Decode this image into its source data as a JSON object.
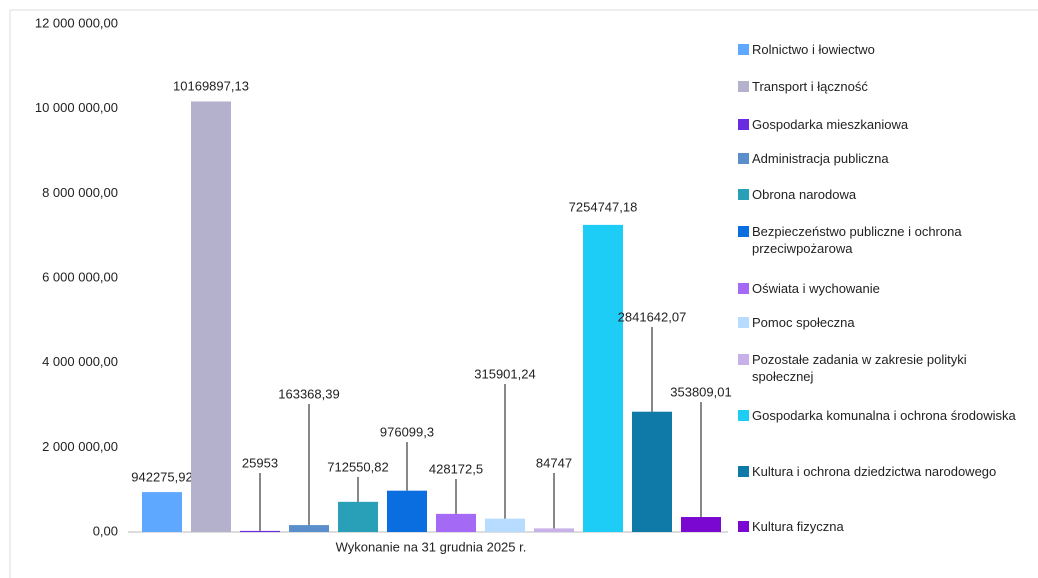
{
  "chart_data": {
    "type": "bar",
    "categories": [
      "Wykonanie na 31 grudnia 2025 r."
    ],
    "series": [
      {
        "name": "Rolnictwo i łowiectwo",
        "color": "#5fa8ff",
        "values": [
          942275.92
        ],
        "value_labels": [
          "942275,92"
        ]
      },
      {
        "name": "Transport i łączność",
        "color": "#b3b1cc",
        "values": [
          10169897.13
        ],
        "value_labels": [
          "10169897,13"
        ]
      },
      {
        "name": "Gospodarka mieszkaniowa",
        "color": "#6a2be0",
        "values": [
          25953
        ],
        "value_labels": [
          "25953"
        ]
      },
      {
        "name": "Administracja publiczna",
        "color": "#5b8fcc",
        "values": [
          163368.39
        ],
        "value_labels": [
          "163368,39"
        ]
      },
      {
        "name": "Obrona narodowa",
        "color": "#2a9fb8",
        "values": [
          712550.82
        ],
        "value_labels": [
          "712550,82"
        ]
      },
      {
        "name": "Bezpieczeństwo publiczne i ochrona przeciwpożarowa",
        "color": "#0a6ee0",
        "values": [
          976099.3
        ],
        "value_labels": [
          "976099,3"
        ]
      },
      {
        "name": "Oświata i wychowanie",
        "color": "#a56af5",
        "values": [
          428172.5
        ],
        "value_labels": [
          "428172,5"
        ]
      },
      {
        "name": "Pomoc społeczna",
        "color": "#b8dcff",
        "values": [
          315901.24
        ],
        "value_labels": [
          "315901,24"
        ]
      },
      {
        "name": "Pozostałe zadania w zakresie polityki społecznej",
        "color": "#c8b0e8",
        "values": [
          84747
        ],
        "value_labels": [
          "84747"
        ]
      },
      {
        "name": "Gospodarka komunalna i ochrona środowiska",
        "color": "#1ecdf5",
        "values": [
          7254747.18
        ],
        "value_labels": [
          "7254747,18"
        ]
      },
      {
        "name": "Kultura i ochrona dziedzictwa narodowego",
        "color": "#0f7aa8",
        "values": [
          2841642.07
        ],
        "value_labels": [
          "2841642,07"
        ]
      },
      {
        "name": "Kultura fizyczna",
        "color": "#7a08d0",
        "values": [
          353809.01
        ],
        "value_labels": [
          "353809,01"
        ]
      }
    ],
    "ylim": [
      0,
      12000000
    ],
    "yticks": [
      {
        "value": 0,
        "label": "0,00"
      },
      {
        "value": 2000000,
        "label": "2 000 000,00"
      },
      {
        "value": 4000000,
        "label": "4 000 000,00"
      },
      {
        "value": 6000000,
        "label": "6 000 000,00"
      },
      {
        "value": 8000000,
        "label": "8 000 000,00"
      },
      {
        "value": 10000000,
        "label": "10 000 000,00"
      },
      {
        "value": 12000000,
        "label": "12 000 000,00"
      }
    ],
    "grid": false,
    "legend": "right"
  }
}
